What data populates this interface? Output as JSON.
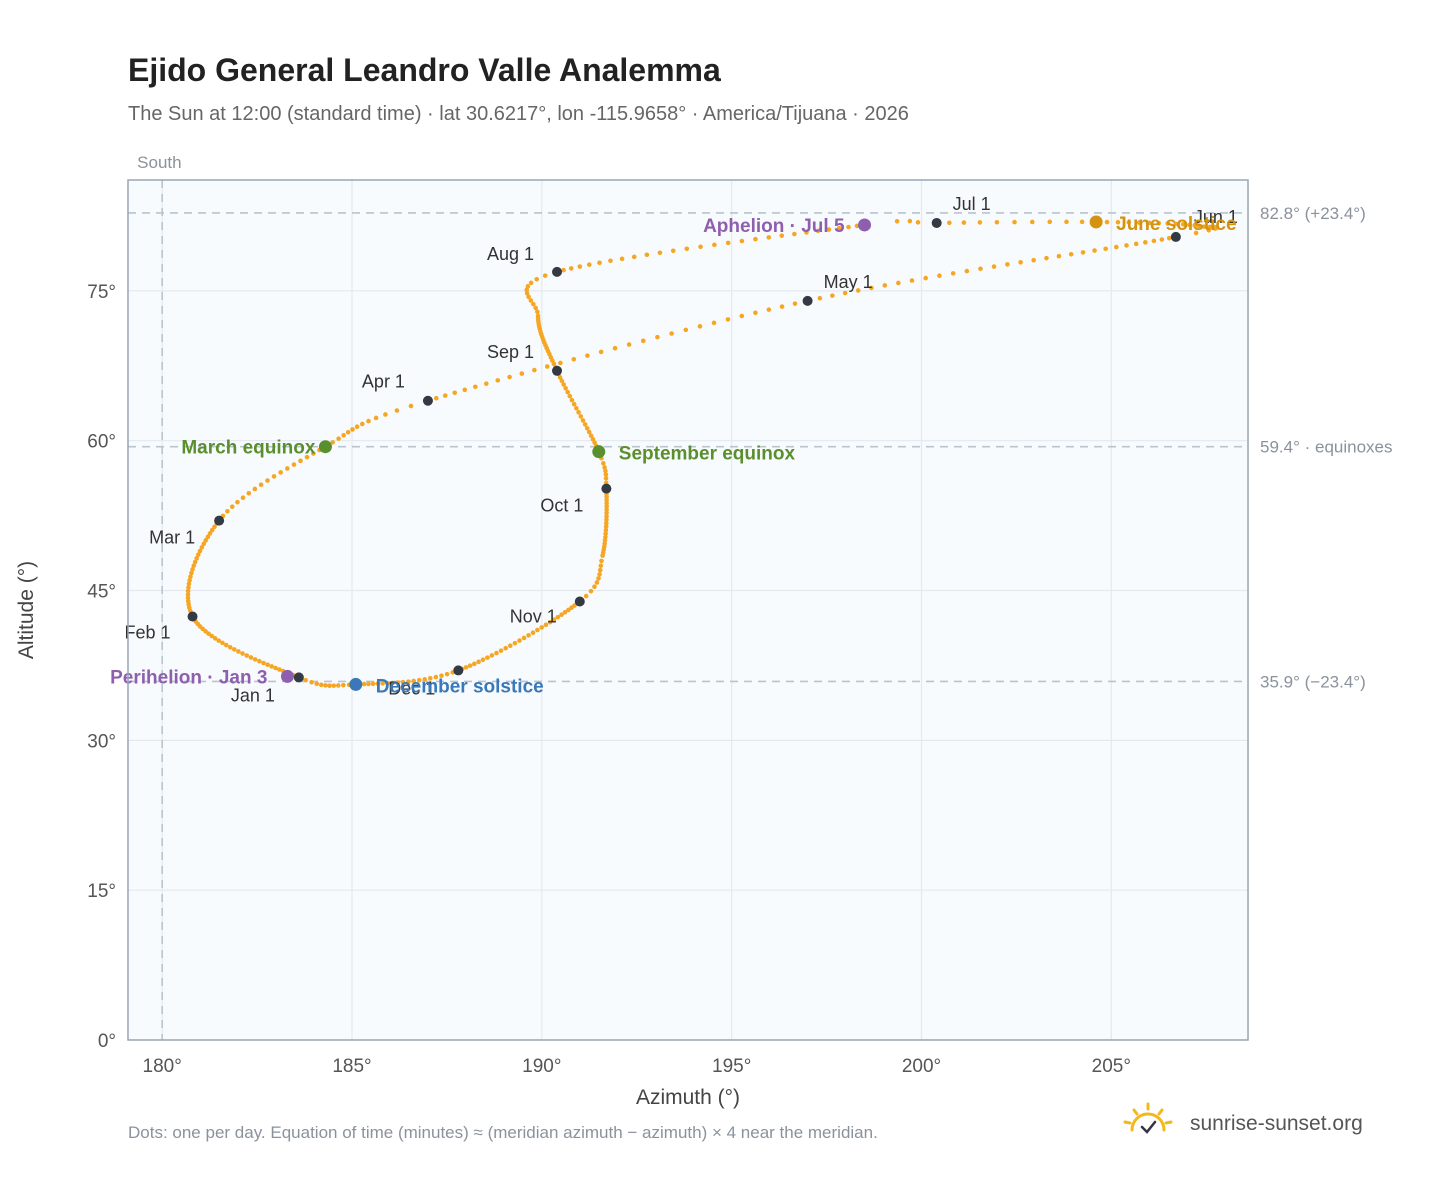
{
  "title": "Ejido General Leandro Valle Analemma",
  "subtitle": "The Sun at 12:00 (standard time) · lat 30.6217°, lon -115.9658° · America/Tijuana · 2026",
  "footnote": "Dots: one per day. Equation of time (minutes) ≈ (meridian azimuth − azimuth) × 4 near the meridian.",
  "brand": {
    "name": "sunrise-sunset.org",
    "logo_icon": "sun-logo-icon"
  },
  "colors": {
    "curve": "#f5a623",
    "month_marker": "#333a44",
    "equinox": "#5a8f2e",
    "december_solstice": "#3a78b8",
    "june_solstice": "#d4920f",
    "perihelion_aphelion": "#8e5fae",
    "plot_bg": "#f8fbfd",
    "grid": "#e3e9ef",
    "ref_line": "#b8c4ce"
  },
  "chart_data": {
    "type": "scatter",
    "xlabel": "Azimuth (°)",
    "ylabel": "Altitude (°)",
    "xlim": [
      179.1,
      208.6
    ],
    "ylim": [
      0,
      86.1
    ],
    "xticks": [
      180,
      185,
      190,
      195,
      200,
      205
    ],
    "yticks": [
      0,
      15,
      30,
      45,
      60,
      75
    ],
    "x_tick_suffix": "°",
    "y_tick_suffix": "°",
    "grid": true,
    "south_line": {
      "azimuth": 180,
      "label": "South"
    },
    "reference_lines": [
      {
        "altitude": 82.8,
        "label": "82.8° (+23.4°)"
      },
      {
        "altitude": 59.4,
        "label": "59.4° · equinoxes"
      },
      {
        "altitude": 35.9,
        "label": "35.9° (−23.4°)"
      }
    ],
    "month_markers": [
      {
        "label": "Jan 1",
        "azimuth": 183.6,
        "altitude": 36.3
      },
      {
        "label": "Feb 1",
        "azimuth": 180.8,
        "altitude": 42.4
      },
      {
        "label": "Mar 1",
        "azimuth": 181.5,
        "altitude": 52.0
      },
      {
        "label": "Apr 1",
        "azimuth": 187.0,
        "altitude": 64.0
      },
      {
        "label": "May 1",
        "azimuth": 197.0,
        "altitude": 74.0
      },
      {
        "label": "Jun 1",
        "azimuth": 206.7,
        "altitude": 80.4
      },
      {
        "label": "Jul 1",
        "azimuth": 200.4,
        "altitude": 81.8
      },
      {
        "label": "Aug 1",
        "azimuth": 190.4,
        "altitude": 76.9
      },
      {
        "label": "Sep 1",
        "azimuth": 190.4,
        "altitude": 67.0
      },
      {
        "label": "Oct 1",
        "azimuth": 191.7,
        "altitude": 55.2
      },
      {
        "label": "Nov 1",
        "azimuth": 191.0,
        "altitude": 43.9
      },
      {
        "label": "Dec 1",
        "azimuth": 187.8,
        "altitude": 37.0
      }
    ],
    "events": [
      {
        "label": "March equinox",
        "azimuth": 184.3,
        "altitude": 59.4,
        "kind": "equinox"
      },
      {
        "label": "September equinox",
        "azimuth": 191.5,
        "altitude": 58.9,
        "kind": "equinox"
      },
      {
        "label": "June solstice",
        "azimuth": 204.6,
        "altitude": 81.9,
        "kind": "june"
      },
      {
        "label": "December solstice",
        "azimuth": 185.1,
        "altitude": 35.6,
        "kind": "december"
      },
      {
        "label": "Perihelion · Jan 3",
        "azimuth": 183.3,
        "altitude": 36.4,
        "kind": "apsis"
      },
      {
        "label": "Aphelion · Jul 5",
        "azimuth": 198.5,
        "altitude": 81.6,
        "kind": "apsis"
      }
    ],
    "curve_nodes": [
      {
        "day": 1,
        "azimuth": 183.6,
        "altitude": 36.3
      },
      {
        "day": 32,
        "azimuth": 180.8,
        "altitude": 42.4
      },
      {
        "day": 60,
        "azimuth": 181.5,
        "altitude": 52.0
      },
      {
        "day": 78,
        "azimuth": 184.3,
        "altitude": 59.4
      },
      {
        "day": 91,
        "azimuth": 187.0,
        "altitude": 64.0
      },
      {
        "day": 121,
        "azimuth": 197.0,
        "altitude": 74.0
      },
      {
        "day": 152,
        "azimuth": 206.7,
        "altitude": 80.4
      },
      {
        "day": 160,
        "azimuth": 207.3,
        "altitude": 81.5
      },
      {
        "day": 172,
        "azimuth": 204.6,
        "altitude": 81.9
      },
      {
        "day": 182,
        "azimuth": 200.4,
        "altitude": 81.8
      },
      {
        "day": 186,
        "azimuth": 198.5,
        "altitude": 81.6
      },
      {
        "day": 213,
        "azimuth": 190.4,
        "altitude": 76.9
      },
      {
        "day": 225,
        "azimuth": 189.9,
        "altitude": 72.5
      },
      {
        "day": 244,
        "azimuth": 190.4,
        "altitude": 67.0
      },
      {
        "day": 266,
        "azimuth": 191.5,
        "altitude": 58.9
      },
      {
        "day": 274,
        "azimuth": 191.7,
        "altitude": 55.2
      },
      {
        "day": 295,
        "azimuth": 191.6,
        "altitude": 48.5
      },
      {
        "day": 305,
        "azimuth": 191.0,
        "altitude": 43.9
      },
      {
        "day": 335,
        "azimuth": 187.8,
        "altitude": 37.0
      },
      {
        "day": 355,
        "azimuth": 185.1,
        "altitude": 35.6
      },
      {
        "day": 366,
        "azimuth": 183.6,
        "altitude": 36.3
      }
    ]
  }
}
